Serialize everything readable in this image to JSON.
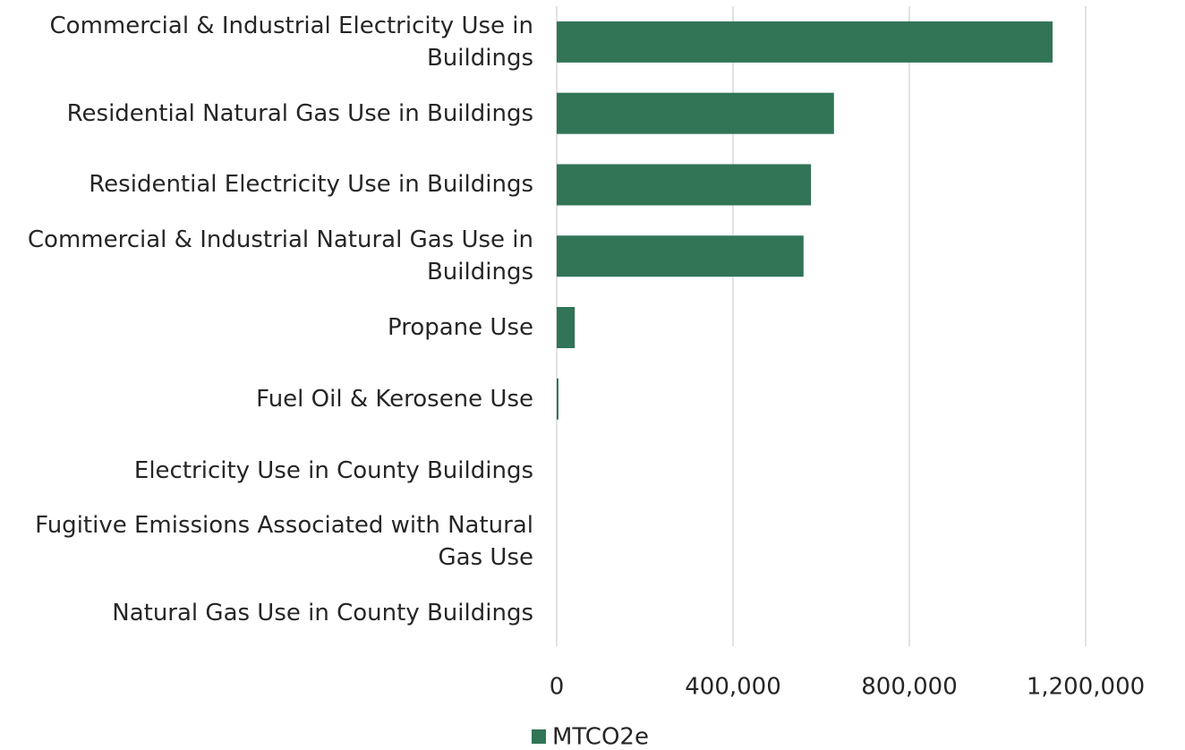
{
  "chart_data": {
    "type": "hbar",
    "categories": [
      "Commercial & Industrial Electricity Use in Buildings",
      "Residential Natural Gas Use in Buildings",
      "Residential Electricity Use in Buildings",
      "Commercial & Industrial Natural Gas Use in Buildings",
      "Propane Use",
      "Fuel Oil & Kerosene Use",
      "Electricity Use in County Buildings",
      "Fugitive Emissions Associated with Natural Gas Use",
      "Natural Gas Use in County Buildings"
    ],
    "series": [
      {
        "name": "MTCO2e",
        "color": "#317456",
        "values": [
          1125000,
          629000,
          577000,
          560000,
          41000,
          4000,
          0,
          0,
          0
        ]
      }
    ],
    "xlim": [
      0,
      1400000
    ],
    "xticks": [
      0,
      {
        "value": 400000,
        "label": "400,000"
      },
      {
        "value": 800000,
        "label": "800,000"
      },
      {
        "value": 1200000,
        "label": "1,200,000"
      }
    ],
    "grid": true,
    "legend": "bottom"
  }
}
